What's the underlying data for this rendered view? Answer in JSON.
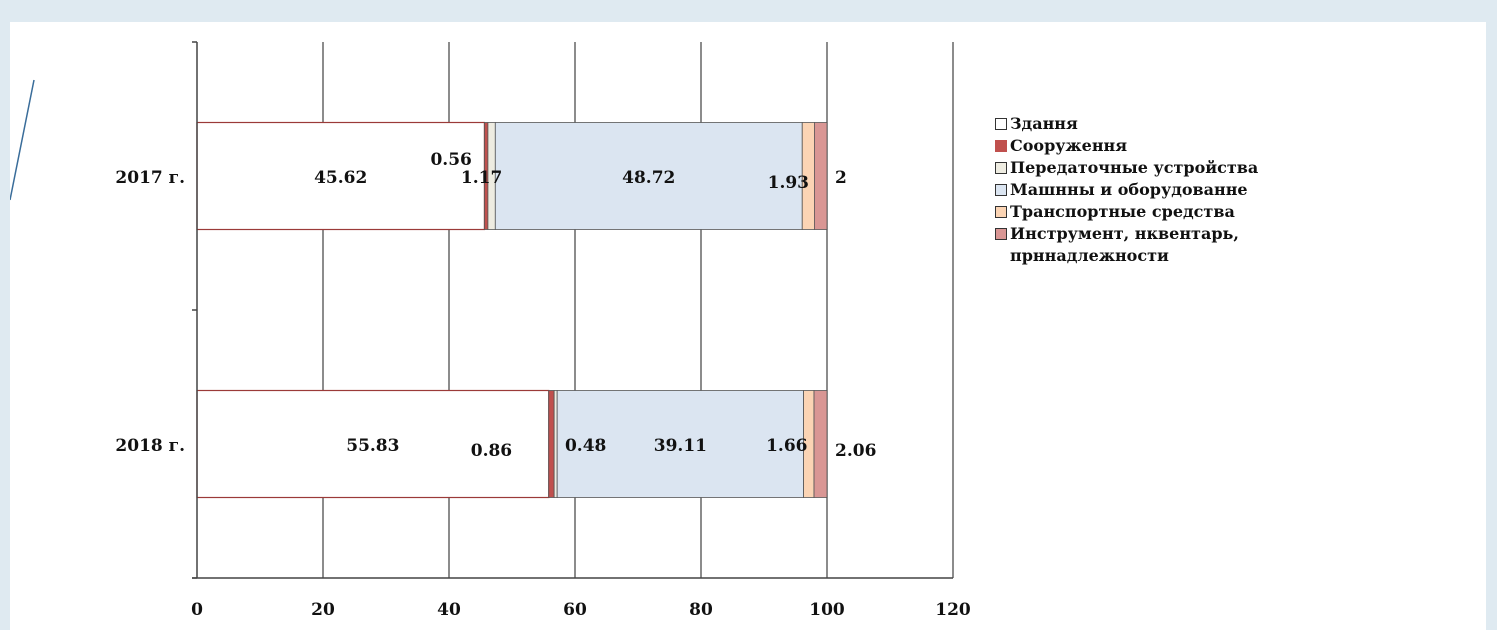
{
  "chart_data": {
    "type": "bar",
    "orientation": "horizontal",
    "stacked": true,
    "categories": [
      "2017 г.",
      "2018 г."
    ],
    "series": [
      {
        "name": "Здання",
        "values": [
          45.62,
          55.83
        ],
        "color": "#ffffff"
      },
      {
        "name": "Сооруження",
        "values": [
          0.56,
          0.86
        ],
        "color": "#c0504d"
      },
      {
        "name": "Передаточные устройства",
        "values": [
          1.17,
          0.48
        ],
        "color": "#eeece1"
      },
      {
        "name": "Машнны и оборудованне",
        "values": [
          48.72,
          39.11
        ],
        "color": "#dbe5f1"
      },
      {
        "name": "Транспортные средства",
        "values": [
          1.93,
          1.66
        ],
        "color": "#fbd4b4"
      },
      {
        "name": "Инструмент, нквентарь, прннадлежности",
        "values": [
          2,
          2.06
        ],
        "color": "#d99694"
      }
    ],
    "data_labels": [
      [
        "45.62",
        "0.56",
        "1.17",
        "48.72",
        "1.93",
        "2"
      ],
      [
        "55.83",
        "0.86",
        "0.48",
        "39.11",
        "1.66",
        "2.06"
      ]
    ],
    "xlim": [
      0,
      120
    ],
    "x_ticks": [
      "0",
      "20",
      "40",
      "60",
      "80",
      "100",
      "120"
    ],
    "grid": "vertical",
    "legend_position": "right",
    "title": "",
    "xlabel": "",
    "ylabel": ""
  }
}
